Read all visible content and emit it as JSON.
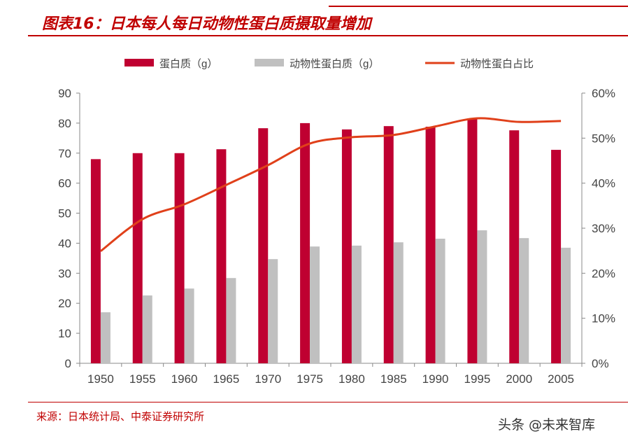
{
  "header": {
    "title": "图表16：日本每人每日动物性蛋白质摄取量增加"
  },
  "footer": {
    "source": "来源：日本统计局、中泰证券研究所",
    "watermark": "头条 @未来智库"
  },
  "chart_data": {
    "type": "bar+line",
    "categories": [
      "1950",
      "1955",
      "1960",
      "1965",
      "1970",
      "1975",
      "1980",
      "1985",
      "1990",
      "1995",
      "2000",
      "2005"
    ],
    "series": [
      {
        "name": "蛋白质（g）",
        "kind": "bar",
        "axis": "left",
        "color": "#bf0031",
        "values": [
          68,
          70,
          70,
          71.3,
          78.3,
          80,
          77.9,
          79,
          78.8,
          81.6,
          77.6,
          71.1
        ]
      },
      {
        "name": "动物性蛋白质（g）",
        "kind": "bar",
        "axis": "left",
        "color": "#c0c0c0",
        "values": [
          17,
          22.6,
          24.9,
          28.4,
          34.7,
          38.9,
          39.2,
          40.3,
          41.5,
          44.3,
          41.7,
          38.5
        ]
      },
      {
        "name": "动物性蛋白占比",
        "kind": "line",
        "axis": "right",
        "color": "#e0401a",
        "values": [
          24.9,
          32,
          35.3,
          39.6,
          44,
          48.8,
          50.2,
          50.7,
          52.6,
          54.4,
          53.6,
          53.8
        ]
      }
    ],
    "left_axis": {
      "ylim": [
        0,
        90
      ],
      "ticks": [
        "0",
        "10",
        "20",
        "30",
        "40",
        "50",
        "60",
        "70",
        "80",
        "90"
      ]
    },
    "right_axis": {
      "ylim": [
        0,
        60
      ],
      "ticks": [
        "0%",
        "10%",
        "20%",
        "30%",
        "40%",
        "50%",
        "60%"
      ]
    },
    "legend": "top",
    "grid": false
  }
}
